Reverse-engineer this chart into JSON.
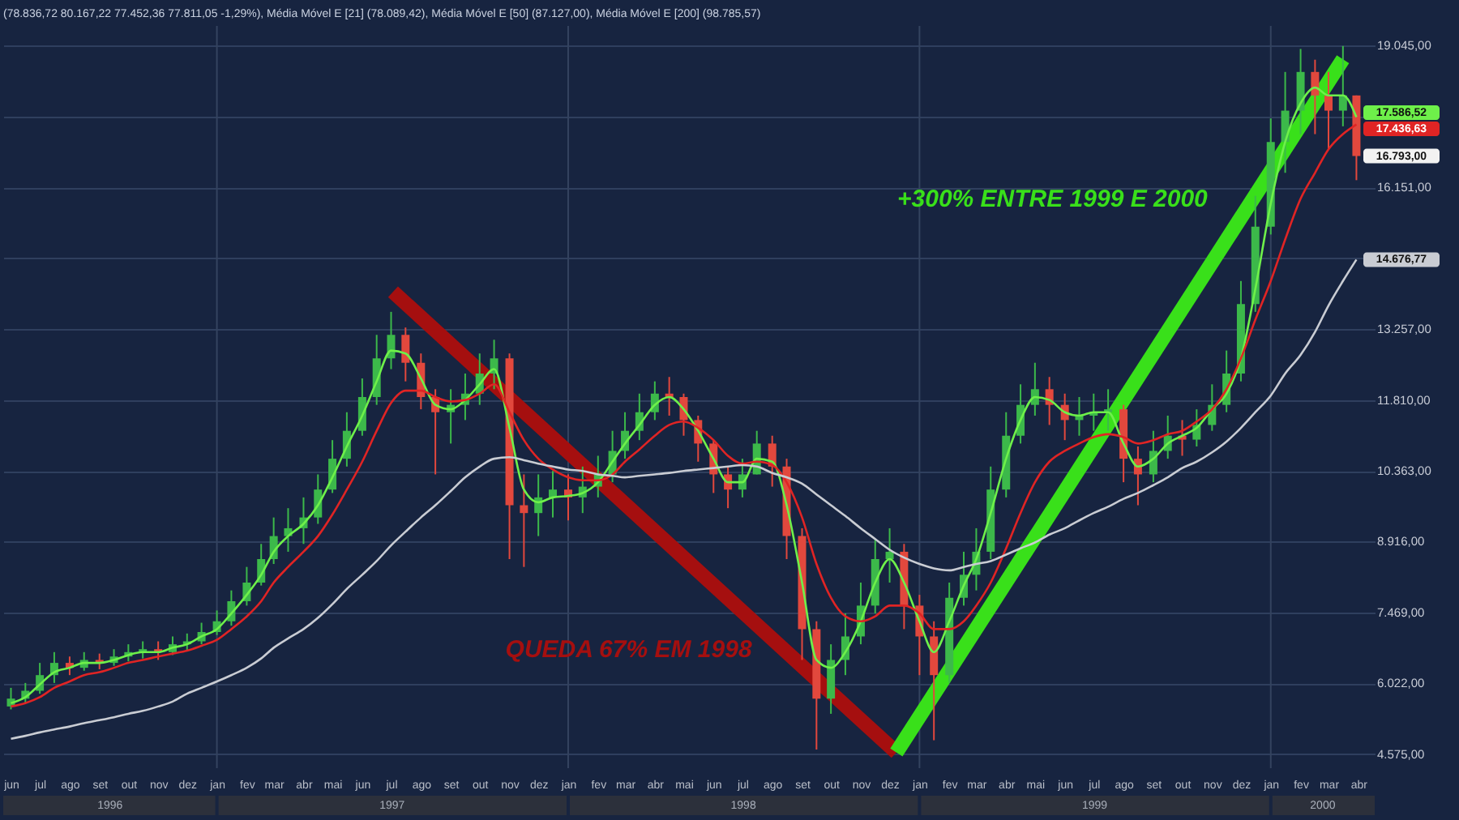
{
  "chart_data": {
    "type": "candlestick",
    "subtitle": "(78.836,72 80.167,22 77.452,36 77.811,05 -1,29%), Média Móvel E [21] (78.089,42), Média Móvel E [50] (87.127,00), Média Móvel E [200] (98.785,57)",
    "x": [
      "1996-06-01",
      "1996-06-16",
      "1996-07-01",
      "1996-07-16",
      "1996-08-01",
      "1996-08-16",
      "1996-09-01",
      "1996-09-16",
      "1996-10-01",
      "1996-10-16",
      "1996-11-01",
      "1996-11-16",
      "1996-12-01",
      "1996-12-16",
      "1997-01-01",
      "1997-01-16",
      "1997-02-01",
      "1997-02-16",
      "1997-03-01",
      "1997-03-16",
      "1997-04-01",
      "1997-04-16",
      "1997-05-01",
      "1997-05-16",
      "1997-06-01",
      "1997-06-16",
      "1997-07-01",
      "1997-07-16",
      "1997-08-01",
      "1997-08-16",
      "1997-09-01",
      "1997-09-16",
      "1997-10-01",
      "1997-10-16",
      "1997-11-01",
      "1997-11-16",
      "1997-12-01",
      "1997-12-16",
      "1998-01-01",
      "1998-01-16",
      "1998-02-01",
      "1998-02-16",
      "1998-03-01",
      "1998-03-16",
      "1998-04-01",
      "1998-04-16",
      "1998-05-01",
      "1998-05-16",
      "1998-06-01",
      "1998-06-16",
      "1998-07-01",
      "1998-07-16",
      "1998-08-01",
      "1998-08-16",
      "1998-09-01",
      "1998-09-16",
      "1998-10-01",
      "1998-10-16",
      "1998-11-01",
      "1998-11-16",
      "1998-12-01",
      "1998-12-16",
      "1999-01-01",
      "1999-01-16",
      "1999-02-01",
      "1999-02-16",
      "1999-03-01",
      "1999-03-16",
      "1999-04-01",
      "1999-04-16",
      "1999-05-01",
      "1999-05-16",
      "1999-06-01",
      "1999-06-16",
      "1999-07-01",
      "1999-07-16",
      "1999-08-01",
      "1999-08-16",
      "1999-09-01",
      "1999-09-16",
      "1999-10-01",
      "1999-10-16",
      "1999-11-01",
      "1999-11-16",
      "1999-12-01",
      "1999-12-16",
      "2000-01-01",
      "2000-01-16",
      "2000-02-01",
      "2000-02-16",
      "2000-03-01",
      "2000-03-16",
      "2000-03-30"
    ],
    "ohlc": [
      [
        5550,
        5930,
        5490,
        5710
      ],
      [
        5710,
        6030,
        5620,
        5870
      ],
      [
        5870,
        6440,
        5810,
        6190
      ],
      [
        6190,
        6660,
        6030,
        6440
      ],
      [
        6440,
        6570,
        6190,
        6340
      ],
      [
        6340,
        6660,
        6280,
        6500
      ],
      [
        6500,
        6630,
        6310,
        6440
      ],
      [
        6440,
        6720,
        6380,
        6570
      ],
      [
        6570,
        6820,
        6470,
        6660
      ],
      [
        6660,
        6880,
        6530,
        6720
      ],
      [
        6720,
        6880,
        6500,
        6660
      ],
      [
        6660,
        6980,
        6600,
        6820
      ],
      [
        6820,
        7040,
        6690,
        6880
      ],
      [
        6880,
        7260,
        6820,
        7070
      ],
      [
        7070,
        7510,
        7010,
        7290
      ],
      [
        7290,
        7920,
        7200,
        7700
      ],
      [
        7700,
        8400,
        7610,
        8080
      ],
      [
        8080,
        8870,
        8020,
        8560
      ],
      [
        8560,
        9410,
        8460,
        9030
      ],
      [
        9030,
        9600,
        8710,
        9190
      ],
      [
        9190,
        9820,
        8870,
        9410
      ],
      [
        9410,
        10290,
        9280,
        9980
      ],
      [
        9980,
        10990,
        9910,
        10610
      ],
      [
        10610,
        11560,
        10450,
        11180
      ],
      [
        11180,
        12250,
        11080,
        11870
      ],
      [
        11870,
        13140,
        11710,
        12660
      ],
      [
        12660,
        13610,
        12440,
        13140
      ],
      [
        13140,
        13290,
        12190,
        12570
      ],
      [
        12570,
        12760,
        11620,
        11870
      ],
      [
        11870,
        12030,
        10290,
        11560
      ],
      [
        11560,
        12030,
        10920,
        11710
      ],
      [
        11710,
        12350,
        11400,
        11940
      ],
      [
        11940,
        12760,
        11710,
        12350
      ],
      [
        12350,
        13040,
        12030,
        12660
      ],
      [
        12660,
        12760,
        8560,
        9660
      ],
      [
        9660,
        10290,
        8400,
        9500
      ],
      [
        9500,
        10290,
        9030,
        9820
      ],
      [
        9820,
        10360,
        9410,
        9980
      ],
      [
        9980,
        10290,
        9350,
        9820
      ],
      [
        9820,
        10450,
        9500,
        10040
      ],
      [
        10040,
        10670,
        9820,
        10290
      ],
      [
        10290,
        11180,
        10130,
        10770
      ],
      [
        10770,
        11560,
        10610,
        11180
      ],
      [
        11180,
        11940,
        10990,
        11560
      ],
      [
        11560,
        12190,
        11400,
        11940
      ],
      [
        11940,
        12280,
        11490,
        11870
      ],
      [
        11870,
        11940,
        11080,
        11400
      ],
      [
        11400,
        11490,
        10550,
        10920
      ],
      [
        10920,
        10990,
        9910,
        10290
      ],
      [
        10290,
        10450,
        9600,
        9980
      ],
      [
        9980,
        10610,
        9820,
        10290
      ],
      [
        10290,
        11180,
        10290,
        10920
      ],
      [
        10920,
        11080,
        10040,
        10450
      ],
      [
        10450,
        10610,
        8560,
        9030
      ],
      [
        9030,
        9190,
        6500,
        7130
      ],
      [
        7130,
        7290,
        4670,
        5710
      ],
      [
        5710,
        6820,
        5400,
        6500
      ],
      [
        6500,
        7450,
        6190,
        6980
      ],
      [
        6980,
        8080,
        6820,
        7610
      ],
      [
        7610,
        8970,
        7450,
        8560
      ],
      [
        8560,
        9190,
        8080,
        8710
      ],
      [
        8710,
        8870,
        7130,
        7610
      ],
      [
        7610,
        7830,
        6190,
        6980
      ],
      [
        6980,
        7290,
        4860,
        6190
      ],
      [
        6190,
        8080,
        6030,
        7770
      ],
      [
        7770,
        8710,
        7610,
        8240
      ],
      [
        8240,
        9190,
        7920,
        8710
      ],
      [
        8710,
        10450,
        8560,
        9980
      ],
      [
        9980,
        11560,
        9820,
        11080
      ],
      [
        11080,
        12130,
        10920,
        11710
      ],
      [
        11710,
        12570,
        11490,
        12030
      ],
      [
        12030,
        12280,
        11300,
        11710
      ],
      [
        11710,
        11940,
        10990,
        11400
      ],
      [
        11400,
        11870,
        11080,
        11490
      ],
      [
        11490,
        11940,
        11180,
        11560
      ],
      [
        11560,
        12030,
        11180,
        11620
      ],
      [
        11620,
        11710,
        10130,
        10610
      ],
      [
        10610,
        10860,
        9660,
        10290
      ],
      [
        10290,
        11180,
        10130,
        10770
      ],
      [
        10770,
        11490,
        10610,
        11080
      ],
      [
        11080,
        11400,
        10670,
        11000
      ],
      [
        11000,
        11620,
        10860,
        11300
      ],
      [
        11300,
        12130,
        11180,
        11710
      ],
      [
        11710,
        12820,
        11560,
        12350
      ],
      [
        12350,
        14240,
        12190,
        13770
      ],
      [
        13770,
        15980,
        13610,
        15350
      ],
      [
        15350,
        17560,
        15190,
        17080
      ],
      [
        17080,
        18510,
        16450,
        17720
      ],
      [
        17720,
        18980,
        17240,
        18510
      ],
      [
        18510,
        18760,
        17240,
        18030
      ],
      [
        18030,
        18510,
        16930,
        17720
      ],
      [
        17720,
        19040,
        17400,
        18030
      ],
      [
        18030,
        18030,
        16300,
        16793
      ]
    ],
    "colors": [
      "#3cb94a",
      "#3cb94a",
      "#3cb94a",
      "#3cb94a",
      "#e2483d",
      "#3cb94a",
      "#e2483d",
      "#3cb94a",
      "#3cb94a",
      "#3cb94a",
      "#e2483d",
      "#3cb94a",
      "#3cb94a",
      "#3cb94a",
      "#3cb94a",
      "#3cb94a",
      "#3cb94a",
      "#3cb94a",
      "#3cb94a",
      "#3cb94a",
      "#3cb94a",
      "#3cb94a",
      "#3cb94a",
      "#3cb94a",
      "#3cb94a",
      "#3cb94a",
      "#3cb94a",
      "#e2483d",
      "#e2483d",
      "#e2483d",
      "#3cb94a",
      "#3cb94a",
      "#3cb94a",
      "#3cb94a",
      "#e2483d",
      "#e2483d",
      "#3cb94a",
      "#3cb94a",
      "#e2483d",
      "#3cb94a",
      "#3cb94a",
      "#3cb94a",
      "#3cb94a",
      "#3cb94a",
      "#3cb94a",
      "#e2483d",
      "#e2483d",
      "#e2483d",
      "#e2483d",
      "#e2483d",
      "#3cb94a",
      "#3cb94a",
      "#e2483d",
      "#e2483d",
      "#e2483d",
      "#e2483d",
      "#3cb94a",
      "#3cb94a",
      "#3cb94a",
      "#3cb94a",
      "#3cb94a",
      "#e2483d",
      "#e2483d",
      "#e2483d",
      "#3cb94a",
      "#3cb94a",
      "#3cb94a",
      "#3cb94a",
      "#3cb94a",
      "#3cb94a",
      "#3cb94a",
      "#e2483d",
      "#e2483d",
      "#3cb94a",
      "#3cb94a",
      "#3cb94a",
      "#e2483d",
      "#e2483d",
      "#3cb94a",
      "#3cb94a",
      "#e2483d",
      "#3cb94a",
      "#3cb94a",
      "#3cb94a",
      "#3cb94a",
      "#3cb94a",
      "#3cb94a",
      "#3cb94a",
      "#3cb94a",
      "#e2483d",
      "#e2483d",
      "#3cb94a",
      "#e2483d"
    ],
    "series": [
      {
        "type": "line",
        "color": "#6ef04a",
        "values": [
          5620,
          5740,
          6000,
          6250,
          6340,
          6440,
          6440,
          6500,
          6600,
          6660,
          6660,
          6750,
          6820,
          6980,
          7130,
          7450,
          7830,
          8240,
          8710,
          9030,
          9280,
          9660,
          10230,
          10860,
          11490,
          12190,
          12820,
          12760,
          12250,
          11710,
          11620,
          11810,
          12130,
          12440,
          11240,
          9980,
          9720,
          9820,
          9850,
          9910,
          10130,
          10550,
          10920,
          11300,
          11710,
          11870,
          11620,
          11180,
          10610,
          10130,
          10130,
          10610,
          10550,
          9660,
          8080,
          6500,
          6340,
          6660,
          7290,
          8080,
          8560,
          8080,
          7290,
          6660,
          7290,
          8020,
          8560,
          9500,
          10610,
          11400,
          11870,
          11810,
          11560,
          11490,
          11560,
          11560,
          10920,
          10450,
          10610,
          10920,
          11080,
          11240,
          11620,
          11940,
          12660,
          14080,
          15820,
          17080,
          17870,
          18190,
          18030,
          18030,
          17586.52
        ],
        "value_labels": [
          null,
          null,
          null,
          null,
          null,
          null,
          null,
          null,
          null,
          null,
          null,
          null,
          null,
          null,
          null,
          null,
          null,
          null,
          null,
          null,
          null,
          null,
          null,
          null,
          null,
          null,
          null,
          null,
          null,
          null,
          null,
          null,
          null,
          null,
          null,
          null,
          null,
          null,
          null,
          null,
          null,
          null,
          null,
          null,
          null,
          null,
          null,
          null,
          null,
          null,
          null,
          null,
          null,
          null,
          null,
          null,
          null,
          null,
          null,
          null,
          null,
          null,
          null,
          null,
          null,
          null,
          null,
          null,
          null,
          null,
          null,
          null,
          null,
          null,
          null,
          null,
          null,
          null,
          null,
          null,
          null,
          null,
          null,
          null,
          null,
          null,
          null,
          null,
          null,
          null,
          null,
          null,
          "17.586,52"
        ]
      },
      {
        "type": "line",
        "color": "#e02424",
        "values": [
          5550,
          5620,
          5740,
          5930,
          6060,
          6190,
          6250,
          6340,
          6440,
          6500,
          6570,
          6630,
          6690,
          6790,
          6910,
          7130,
          7390,
          7700,
          8080,
          8400,
          8710,
          9030,
          9470,
          9980,
          10550,
          11180,
          11750,
          12000,
          12000,
          11870,
          11780,
          11810,
          11940,
          12130,
          11560,
          10990,
          10610,
          10390,
          10230,
          10170,
          10170,
          10290,
          10550,
          10800,
          11080,
          11300,
          11370,
          11240,
          10990,
          10670,
          10510,
          10550,
          10480,
          10130,
          9410,
          8460,
          7770,
          7390,
          7290,
          7390,
          7610,
          7610,
          7450,
          7130,
          7130,
          7290,
          7610,
          8080,
          8780,
          9500,
          10130,
          10550,
          10770,
          10920,
          11050,
          11110,
          11050,
          10920,
          10990,
          11110,
          11180,
          11370,
          11620,
          12030,
          12660,
          13450,
          14240,
          15090,
          15920,
          16450,
          16930,
          17240,
          17436.63
        ],
        "value_labels": [
          null,
          null,
          null,
          null,
          null,
          null,
          null,
          null,
          null,
          null,
          null,
          null,
          null,
          null,
          null,
          null,
          null,
          null,
          null,
          null,
          null,
          null,
          null,
          null,
          null,
          null,
          null,
          null,
          null,
          null,
          null,
          null,
          null,
          null,
          null,
          null,
          null,
          null,
          null,
          null,
          null,
          null,
          null,
          null,
          null,
          null,
          null,
          null,
          null,
          null,
          null,
          null,
          null,
          null,
          null,
          null,
          null,
          null,
          null,
          null,
          null,
          null,
          null,
          null,
          null,
          null,
          null,
          null,
          null,
          null,
          null,
          null,
          null,
          null,
          null,
          null,
          null,
          null,
          null,
          null,
          null,
          null,
          null,
          null,
          null,
          null,
          null,
          null,
          null,
          null,
          null,
          null,
          "17.436,63"
        ]
      },
      {
        "type": "line",
        "color": "#c9ccd3",
        "values": [
          4890,
          4950,
          5020,
          5080,
          5140,
          5210,
          5270,
          5330,
          5400,
          5460,
          5550,
          5650,
          5810,
          5930,
          6060,
          6190,
          6340,
          6530,
          6750,
          6940,
          7130,
          7360,
          7640,
          7950,
          8240,
          8520,
          8840,
          9120,
          9410,
          9660,
          9950,
          10230,
          10450,
          10610,
          10640,
          10580,
          10510,
          10450,
          10390,
          10360,
          10290,
          10260,
          10230,
          10260,
          10290,
          10320,
          10360,
          10390,
          10420,
          10450,
          10480,
          10450,
          10320,
          10230,
          10100,
          9880,
          9660,
          9440,
          9190,
          8970,
          8750,
          8590,
          8460,
          8370,
          8330,
          8400,
          8460,
          8520,
          8650,
          8780,
          8900,
          9060,
          9190,
          9350,
          9500,
          9630,
          9790,
          9910,
          10070,
          10230,
          10420,
          10550,
          10740,
          10960,
          11240,
          11560,
          11900,
          12350,
          12730,
          13200,
          13740,
          14240,
          14676.77
        ],
        "value_labels": [
          null,
          null,
          null,
          null,
          null,
          null,
          null,
          null,
          null,
          null,
          null,
          null,
          null,
          null,
          null,
          null,
          null,
          null,
          null,
          null,
          null,
          null,
          null,
          null,
          null,
          null,
          null,
          null,
          null,
          null,
          null,
          null,
          null,
          null,
          null,
          null,
          null,
          null,
          null,
          null,
          null,
          null,
          null,
          null,
          null,
          null,
          null,
          null,
          null,
          null,
          null,
          null,
          null,
          null,
          null,
          null,
          null,
          null,
          null,
          null,
          null,
          null,
          null,
          null,
          null,
          null,
          null,
          null,
          null,
          null,
          null,
          null,
          null,
          null,
          null,
          null,
          null,
          null,
          null,
          null,
          null,
          null,
          null,
          null,
          null,
          null,
          null,
          null,
          null,
          null,
          null,
          null,
          "14.676,77"
        ]
      },
      {
        "type": "line",
        "color": "#a50f0f",
        "x": [
          "1997-07-03",
          "1998-12-08"
        ],
        "values": [
          14020,
          4610
        ]
      },
      {
        "type": "line",
        "color": "#39e01a",
        "x": [
          "1998-12-08",
          "2000-03-16"
        ],
        "values": [
          4610,
          18770
        ]
      }
    ],
    "annotations": [
      "QUEDA 67% EM 1998",
      "+300% ENTRE 1999 E 2000",
      "16.793,00"
    ],
    "xlim": [
      "1996-05-24",
      "2000-04-18"
    ],
    "xticks": [
      {
        "value": "1996-06-01",
        "label": "jun"
      },
      {
        "value": "1996-07-01",
        "label": "jul"
      },
      {
        "value": "1996-08-01",
        "label": "ago"
      },
      {
        "value": "1996-09-01",
        "label": "set"
      },
      {
        "value": "1996-10-01",
        "label": "out"
      },
      {
        "value": "1996-11-01",
        "label": "nov"
      },
      {
        "value": "1996-12-01",
        "label": "dez"
      },
      {
        "value": "1997-01-01",
        "label": "jan"
      },
      {
        "value": "1997-02-01",
        "label": "fev"
      },
      {
        "value": "1997-03-01",
        "label": "mar"
      },
      {
        "value": "1997-04-01",
        "label": "abr"
      },
      {
        "value": "1997-05-01",
        "label": "mai"
      },
      {
        "value": "1997-06-01",
        "label": "jun"
      },
      {
        "value": "1997-07-01",
        "label": "jul"
      },
      {
        "value": "1997-08-01",
        "label": "ago"
      },
      {
        "value": "1997-09-01",
        "label": "set"
      },
      {
        "value": "1997-10-01",
        "label": "out"
      },
      {
        "value": "1997-11-01",
        "label": "nov"
      },
      {
        "value": "1997-12-01",
        "label": "dez"
      },
      {
        "value": "1998-01-01",
        "label": "jan"
      },
      {
        "value": "1998-02-01",
        "label": "fev"
      },
      {
        "value": "1998-03-01",
        "label": "mar"
      },
      {
        "value": "1998-04-01",
        "label": "abr"
      },
      {
        "value": "1998-05-01",
        "label": "mai"
      },
      {
        "value": "1998-06-01",
        "label": "jun"
      },
      {
        "value": "1998-07-01",
        "label": "jul"
      },
      {
        "value": "1998-08-01",
        "label": "ago"
      },
      {
        "value": "1998-09-01",
        "label": "set"
      },
      {
        "value": "1998-10-01",
        "label": "out"
      },
      {
        "value": "1998-11-01",
        "label": "nov"
      },
      {
        "value": "1998-12-01",
        "label": "dez"
      },
      {
        "value": "1999-01-01",
        "label": "jan"
      },
      {
        "value": "1999-02-01",
        "label": "fev"
      },
      {
        "value": "1999-03-01",
        "label": "mar"
      },
      {
        "value": "1999-04-01",
        "label": "abr"
      },
      {
        "value": "1999-05-01",
        "label": "mai"
      },
      {
        "value": "1999-06-01",
        "label": "jun"
      },
      {
        "value": "1999-07-01",
        "label": "jul"
      },
      {
        "value": "1999-08-01",
        "label": "ago"
      },
      {
        "value": "1999-09-01",
        "label": "set"
      },
      {
        "value": "1999-10-01",
        "label": "out"
      },
      {
        "value": "1999-11-01",
        "label": "nov"
      },
      {
        "value": "1999-12-01",
        "label": "dez"
      },
      {
        "value": "2000-01-01",
        "label": "jan"
      },
      {
        "value": "2000-02-01",
        "label": "fev"
      },
      {
        "value": "2000-03-01",
        "label": "mar"
      },
      {
        "value": "2000-04-01",
        "label": "abr"
      }
    ],
    "x2lim": [
      "1996-05-24",
      "2000-04-18"
    ],
    "x2ticks": [
      {
        "value": "1996-09-12",
        "label": "1996"
      },
      {
        "value": "1997-07-02",
        "label": "1997"
      },
      {
        "value": "1998-07-02",
        "label": "1998"
      },
      {
        "value": "1999-07-02",
        "label": "1999"
      },
      {
        "value": "2000-02-24",
        "label": "2000"
      }
    ],
    "ylim": [
      4290,
      19450
    ],
    "yticks": [
      {
        "value": 4575,
        "label": "4.575,00"
      },
      {
        "value": 6022,
        "label": "6.022,00"
      },
      {
        "value": 7469,
        "label": "7.469,00"
      },
      {
        "value": 8916,
        "label": "8.916,00"
      },
      {
        "value": 10363,
        "label": "10.363,00"
      },
      {
        "value": 11810,
        "label": "11.810,00"
      },
      {
        "value": 13257,
        "label": "13.257,00"
      },
      {
        "value": 14704,
        "label": null
      },
      {
        "value": 16151,
        "label": "16.151,00"
      },
      {
        "value": 17598,
        "label": null
      },
      {
        "value": 19045,
        "label": "19.045,00"
      }
    ],
    "ref_lines": [
      {
        "axis": "x",
        "value": "1997-01-01",
        "color": "#34435f"
      },
      {
        "axis": "x",
        "value": "1998-01-01",
        "color": "#34435f"
      },
      {
        "axis": "x",
        "value": "1999-01-01",
        "color": "#34435f"
      },
      {
        "axis": "x",
        "value": "2000-01-01",
        "color": "#34435f"
      }
    ],
    "grid": "y"
  }
}
